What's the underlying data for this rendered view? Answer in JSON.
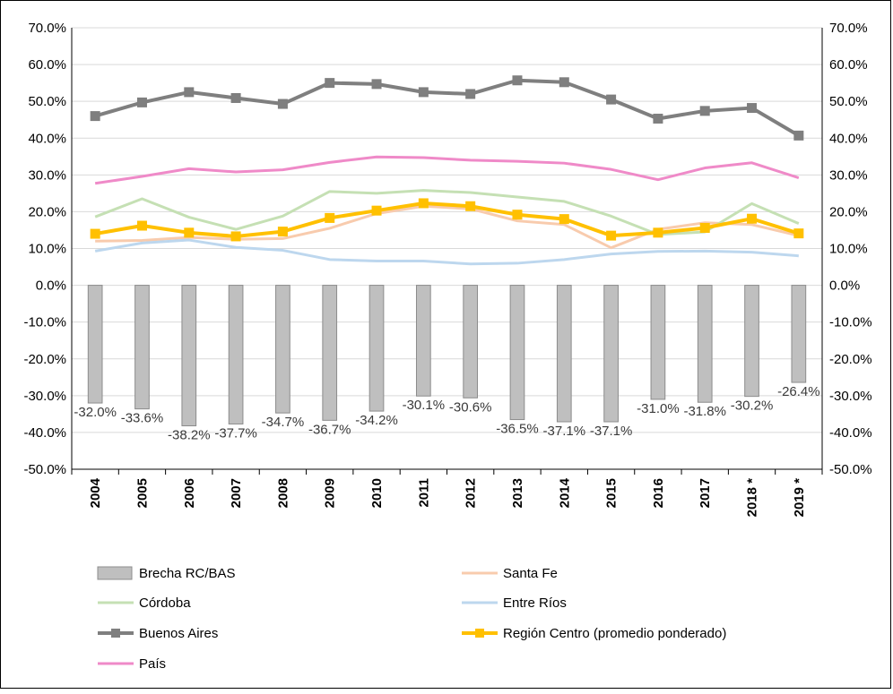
{
  "chart_data": {
    "type": "bar+line",
    "title": "",
    "xlabel": "",
    "ylabel": "",
    "ylim": [
      -0.5,
      0.7
    ],
    "yticks": [
      "70.0%",
      "60.0%",
      "50.0%",
      "40.0%",
      "30.0%",
      "20.0%",
      "10.0%",
      "0.0%",
      "-10.0%",
      "-20.0%",
      "-30.0%",
      "-40.0%",
      "-50.0%"
    ],
    "categories": [
      "2004",
      "2005",
      "2006",
      "2007",
      "2008",
      "2009",
      "2010",
      "2011",
      "2012",
      "2013",
      "2014",
      "2015",
      "2016",
      "2017",
      "2018 *",
      "2019 *"
    ],
    "grid": "horizontal",
    "legend_position": "bottom",
    "colors": {
      "brecha": "#bfbfbf",
      "brecha_edge": "#8c8c8c",
      "santa_fe": "#f8cbad",
      "cordoba": "#c5e0b4",
      "entre_rios": "#bdd7ee",
      "buenos_aires": "#7f7f7f",
      "region_centro": "#ffc000",
      "pais": "#ef8ac8"
    },
    "bars": {
      "key": "brecha",
      "name": "Brecha RC/BAS",
      "values": [
        -0.32,
        -0.336,
        -0.382,
        -0.377,
        -0.347,
        -0.367,
        -0.342,
        -0.301,
        -0.306,
        -0.365,
        -0.371,
        -0.371,
        -0.31,
        -0.318,
        -0.302,
        -0.264
      ],
      "labels": [
        "-32.0%",
        "-33.6%",
        "-38.2%",
        "-37.7%",
        "-34.7%",
        "-36.7%",
        "-34.2%",
        "-30.1%",
        "-30.6%",
        "-36.5%",
        "-37.1%",
        "-37.1%",
        "-31.0%",
        "-31.8%",
        "-30.2%",
        "-26.4%"
      ]
    },
    "series": [
      {
        "key": "santa_fe",
        "name": "Santa Fe",
        "marker": false,
        "width": 3,
        "values": [
          0.12,
          0.122,
          0.13,
          0.125,
          0.127,
          0.155,
          0.195,
          0.215,
          0.208,
          0.175,
          0.165,
          0.102,
          0.152,
          0.17,
          0.165,
          0.135
        ]
      },
      {
        "key": "cordoba",
        "name": "Córdoba",
        "marker": false,
        "width": 3,
        "values": [
          0.186,
          0.235,
          0.185,
          0.152,
          0.188,
          0.255,
          0.25,
          0.258,
          0.252,
          0.24,
          0.228,
          0.188,
          0.138,
          0.145,
          0.222,
          0.168
        ]
      },
      {
        "key": "entre_rios",
        "name": "Entre Ríos",
        "marker": false,
        "width": 3,
        "values": [
          0.093,
          0.115,
          0.123,
          0.103,
          0.095,
          0.07,
          0.066,
          0.066,
          0.058,
          0.06,
          0.07,
          0.085,
          0.092,
          0.093,
          0.09,
          0.08
        ]
      },
      {
        "key": "buenos_aires",
        "name": "Buenos Aires",
        "marker": true,
        "width": 4,
        "values": [
          0.46,
          0.497,
          0.525,
          0.509,
          0.493,
          0.55,
          0.547,
          0.525,
          0.52,
          0.557,
          0.552,
          0.505,
          0.453,
          0.474,
          0.482,
          0.407
        ]
      },
      {
        "key": "region_centro",
        "name": "Región Centro (promedio ponderado)",
        "marker": true,
        "width": 4,
        "values": [
          0.14,
          0.162,
          0.143,
          0.133,
          0.146,
          0.183,
          0.203,
          0.223,
          0.215,
          0.192,
          0.18,
          0.135,
          0.143,
          0.156,
          0.181,
          0.141
        ]
      },
      {
        "key": "pais",
        "name": "País",
        "marker": false,
        "width": 3,
        "values": [
          0.277,
          0.296,
          0.317,
          0.308,
          0.314,
          0.334,
          0.349,
          0.347,
          0.34,
          0.337,
          0.332,
          0.315,
          0.287,
          0.319,
          0.333,
          0.292
        ]
      }
    ],
    "legend": [
      {
        "key": "brecha",
        "name": "Brecha RC/BAS",
        "kind": "bar"
      },
      {
        "key": "santa_fe",
        "name": "Santa Fe",
        "kind": "line"
      },
      {
        "key": "cordoba",
        "name": "Córdoba",
        "kind": "line"
      },
      {
        "key": "entre_rios",
        "name": "Entre Ríos",
        "kind": "line"
      },
      {
        "key": "buenos_aires",
        "name": "Buenos Aires",
        "kind": "line-marker"
      },
      {
        "key": "region_centro",
        "name": "Región Centro (promedio ponderado)",
        "kind": "line-marker"
      },
      {
        "key": "pais",
        "name": "País",
        "kind": "line"
      }
    ]
  }
}
